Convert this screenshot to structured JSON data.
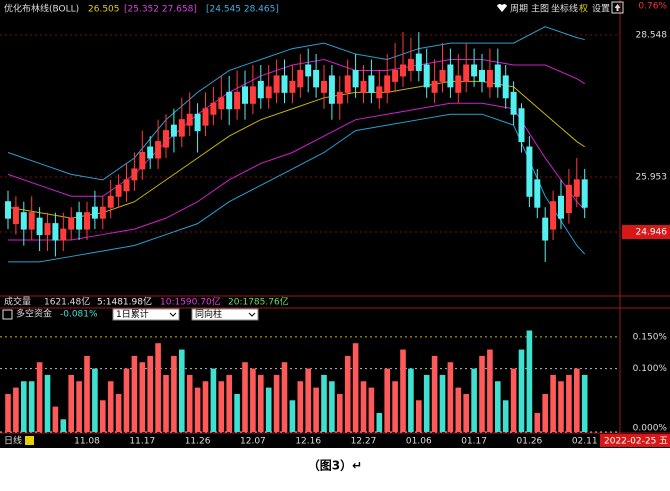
{
  "header": {
    "indicator": "优化布林线(BOLL)",
    "mid": "26.505",
    "inner": "[25.352  27.658]",
    "outer": "[24.545  28.465]",
    "buttons": [
      "周期",
      "主图",
      "坐标线",
      "权",
      "设置"
    ]
  },
  "volume_line": {
    "label": "成交量",
    "total": "1621.48亿",
    "ma5": "5:1481.98亿",
    "ma10": "10:1590.70亿",
    "ma20": "20:1785.76亿"
  },
  "indicator": {
    "name": "多空资金",
    "value": "-0.081%",
    "select1": "1日累计",
    "select2": "同向柱"
  },
  "footer": {
    "period": "日线",
    "date": "2022-02-25 五"
  },
  "caption": "（图3）↵",
  "chart_data": [
    {
      "type": "candlestick",
      "top_label": "0.76%",
      "up_color": "#ff3c3c",
      "down_color": "#54f0f0",
      "ylim": [
        23.795,
        29.188
      ],
      "yticks": [
        28.548,
        25.953,
        24.946
      ],
      "open": [
        25.5,
        25.1,
        25.3,
        25.0,
        25.2,
        24.9,
        25.1,
        24.8,
        25.0,
        25.3,
        25.0,
        25.4,
        25.2,
        25.4,
        25.6,
        25.7,
        25.9,
        26.1,
        26.5,
        26.3,
        26.5,
        26.9,
        26.7,
        26.9,
        27.1,
        26.9,
        27.1,
        27.2,
        27.5,
        27.2,
        27.6,
        27.3,
        27.7,
        27.4,
        27.5,
        27.8,
        27.5,
        27.6,
        28.0,
        27.9,
        27.5,
        27.8,
        27.3,
        27.5,
        27.9,
        27.5,
        27.8,
        27.4,
        27.5,
        27.7,
        27.8,
        27.9,
        28.2,
        28.0,
        27.5,
        27.7,
        28.0,
        27.5,
        27.7,
        28.0,
        27.9,
        27.6,
        28.0,
        27.8,
        27.5,
        27.2,
        26.5,
        25.9,
        25.2,
        25.0,
        25.6,
        25.3,
        25.6,
        25.9
      ],
      "high": [
        25.7,
        25.6,
        25.5,
        25.6,
        25.4,
        25.3,
        25.3,
        25.3,
        25.4,
        25.5,
        25.5,
        25.7,
        25.6,
        25.9,
        26.0,
        26.2,
        26.4,
        26.8,
        26.7,
        27.0,
        27.1,
        27.2,
        27.4,
        27.5,
        27.3,
        27.5,
        27.6,
        27.8,
        27.8,
        27.9,
        27.9,
        28.0,
        28.0,
        28.0,
        28.1,
        28.1,
        28.0,
        28.2,
        28.3,
        28.2,
        28.0,
        28.0,
        27.8,
        28.1,
        28.2,
        28.0,
        28.1,
        27.9,
        28.2,
        28.4,
        28.6,
        28.5,
        28.6,
        28.3,
        28.1,
        28.4,
        28.3,
        28.2,
        28.4,
        28.3,
        28.2,
        28.3,
        28.3,
        28.0,
        27.7,
        27.3,
        26.7,
        26.1,
        25.4,
        25.7,
        25.9,
        26.1,
        26.3,
        26.1
      ],
      "low": [
        25.0,
        24.9,
        24.7,
        24.8,
        24.6,
        24.6,
        24.5,
        24.6,
        24.8,
        24.8,
        24.8,
        25.0,
        25.0,
        25.2,
        25.4,
        25.5,
        25.7,
        25.9,
        26.1,
        26.1,
        26.3,
        26.4,
        26.5,
        26.7,
        26.4,
        26.7,
        26.9,
        27.0,
        26.9,
        27.0,
        27.0,
        27.1,
        27.2,
        27.2,
        27.3,
        27.3,
        27.3,
        27.4,
        27.5,
        27.4,
        27.2,
        27.0,
        27.0,
        27.3,
        27.4,
        27.3,
        27.3,
        27.2,
        27.3,
        27.5,
        27.6,
        27.7,
        27.7,
        27.4,
        27.3,
        27.5,
        27.4,
        27.3,
        27.5,
        27.6,
        27.5,
        27.4,
        27.4,
        27.2,
        26.9,
        26.4,
        25.4,
        25.2,
        24.4,
        24.8,
        25.0,
        25.1,
        25.4,
        25.2
      ],
      "close": [
        25.2,
        25.4,
        25.0,
        25.3,
        24.9,
        25.1,
        24.8,
        25.0,
        25.2,
        25.0,
        25.3,
        25.2,
        25.4,
        25.6,
        25.8,
        25.9,
        26.1,
        26.4,
        26.3,
        26.6,
        26.8,
        26.7,
        27.0,
        27.1,
        26.8,
        27.2,
        27.3,
        27.4,
        27.2,
        27.5,
        27.3,
        27.6,
        27.4,
        27.6,
        27.8,
        27.5,
        27.7,
        27.9,
        27.8,
        27.6,
        27.7,
        27.3,
        27.5,
        27.8,
        27.6,
        27.7,
        27.5,
        27.6,
        27.8,
        27.9,
        28.0,
        28.1,
        27.9,
        27.6,
        27.7,
        27.9,
        27.6,
        27.8,
        28.0,
        27.8,
        27.7,
        27.9,
        27.6,
        27.4,
        27.1,
        26.6,
        25.6,
        25.4,
        24.8,
        25.5,
        25.2,
        25.8,
        25.9,
        25.4
      ],
      "lines": [
        {
          "color": "#2a9fd0",
          "x": [
            0,
            4,
            8,
            12,
            16,
            20,
            24,
            28,
            32,
            36,
            40,
            44,
            48,
            52,
            56,
            60,
            64,
            68,
            72,
            73
          ],
          "values": [
            26.4,
            26.2,
            26.0,
            25.9,
            26.3,
            27.0,
            27.5,
            27.9,
            28.1,
            28.3,
            28.4,
            28.2,
            28.1,
            28.3,
            28.4,
            28.4,
            28.4,
            28.7,
            28.5,
            28.465
          ]
        },
        {
          "color": "#d020d0",
          "x": [
            0,
            4,
            8,
            12,
            16,
            20,
            24,
            28,
            32,
            36,
            40,
            44,
            48,
            52,
            56,
            60,
            64,
            68,
            72,
            73
          ],
          "values": [
            26.0,
            25.8,
            25.6,
            25.6,
            26.0,
            26.6,
            27.1,
            27.5,
            27.8,
            28.0,
            28.1,
            27.9,
            27.9,
            28.0,
            28.1,
            28.1,
            28.0,
            28.0,
            27.75,
            27.658
          ]
        },
        {
          "color": "#c8b400",
          "x": [
            0,
            4,
            8,
            12,
            16,
            20,
            24,
            28,
            32,
            36,
            40,
            44,
            48,
            52,
            56,
            60,
            64,
            68,
            72,
            73
          ],
          "values": [
            25.4,
            25.3,
            25.2,
            25.3,
            25.5,
            25.9,
            26.3,
            26.7,
            27.0,
            27.2,
            27.4,
            27.5,
            27.5,
            27.6,
            27.7,
            27.7,
            27.6,
            27.1,
            26.6,
            26.505
          ]
        },
        {
          "color": "#d020d0",
          "x": [
            0,
            4,
            8,
            12,
            16,
            20,
            24,
            28,
            32,
            36,
            40,
            44,
            48,
            52,
            56,
            60,
            64,
            68,
            72,
            73
          ],
          "values": [
            24.8,
            24.8,
            24.8,
            24.9,
            25.0,
            25.2,
            25.5,
            25.9,
            26.2,
            26.4,
            26.7,
            27.0,
            27.1,
            27.2,
            27.3,
            27.3,
            27.2,
            26.3,
            25.5,
            25.352
          ]
        },
        {
          "color": "#2a9fd0",
          "x": [
            0,
            4,
            8,
            12,
            16,
            20,
            24,
            28,
            32,
            36,
            40,
            44,
            48,
            52,
            56,
            60,
            64,
            68,
            72,
            73
          ],
          "values": [
            24.4,
            24.4,
            24.5,
            24.6,
            24.7,
            24.9,
            25.1,
            25.5,
            25.8,
            26.1,
            26.4,
            26.8,
            26.9,
            27.0,
            27.1,
            27.1,
            26.9,
            25.6,
            24.7,
            24.545
          ]
        }
      ]
    },
    {
      "type": "bar",
      "ylim": [
        0,
        0.175
      ],
      "yticks": [
        {
          "value": 0.15,
          "label": "0.150%"
        },
        {
          "value": 0.1,
          "label": "0.100%"
        },
        {
          "value": 0,
          "label": "0.000%"
        }
      ],
      "categories": [
        null,
        null,
        null,
        null,
        null,
        null,
        null,
        null,
        null,
        null,
        "11.08",
        null,
        null,
        null,
        null,
        null,
        null,
        "11.17",
        null,
        null,
        null,
        null,
        null,
        null,
        "11.26",
        null,
        null,
        null,
        null,
        null,
        null,
        "12.07",
        null,
        null,
        null,
        null,
        null,
        null,
        "12.16",
        null,
        null,
        null,
        null,
        null,
        null,
        "12.27",
        null,
        null,
        null,
        null,
        null,
        null,
        "01.06",
        null,
        null,
        null,
        null,
        null,
        null,
        "01.17",
        null,
        null,
        null,
        null,
        null,
        null,
        "01.26",
        null,
        null,
        null,
        null,
        null,
        null,
        "02.11"
      ],
      "values": [
        0.06,
        0.07,
        0.08,
        0.08,
        0.11,
        0.09,
        0.04,
        0.02,
        0.09,
        0.08,
        0.12,
        0.1,
        0.05,
        0.08,
        0.06,
        0.1,
        0.12,
        0.11,
        0.12,
        0.14,
        0.09,
        0.12,
        0.13,
        0.09,
        0.07,
        0.08,
        0.1,
        0.08,
        0.09,
        0.06,
        0.11,
        0.1,
        0.09,
        0.07,
        0.09,
        0.11,
        0.05,
        0.08,
        0.1,
        0.07,
        0.09,
        0.08,
        0.06,
        0.12,
        0.14,
        0.08,
        0.07,
        0.03,
        0.1,
        0.08,
        0.13,
        0.1,
        0.05,
        0.09,
        0.12,
        0.09,
        0.11,
        0.07,
        0.06,
        0.1,
        0.12,
        0.13,
        0.08,
        0.05,
        0.1,
        0.13,
        0.16,
        0.03,
        0.06,
        0.09,
        0.08,
        0.09,
        0.1,
        0.09
      ],
      "colors": [
        "#ff5a5a",
        "#ff5a5a",
        "#40e0d0",
        "#40e0d0",
        "#ff5a5a",
        "#40e0d0",
        "#ff5a5a",
        "#40e0d0",
        "#ff5a5a",
        "#ff5a5a",
        "#ff5a5a",
        "#40e0d0",
        "#ff5a5a",
        "#ff5a5a",
        "#ff5a5a",
        "#ff5a5a",
        "#ff5a5a",
        "#ff5a5a",
        "#ff5a5a",
        "#ff5a5a",
        "#ff5a5a",
        "#ff5a5a",
        "#40e0d0",
        "#ff5a5a",
        "#ff5a5a",
        "#ff5a5a",
        "#40e0d0",
        "#ff5a5a",
        "#ff5a5a",
        "#40e0d0",
        "#ff5a5a",
        "#ff5a5a",
        "#ff5a5a",
        "#40e0d0",
        "#ff5a5a",
        "#ff5a5a",
        "#40e0d0",
        "#ff5a5a",
        "#ff5a5a",
        "#ff5a5a",
        "#40e0d0",
        "#40e0d0",
        "#ff5a5a",
        "#ff5a5a",
        "#ff5a5a",
        "#ff5a5a",
        "#ff5a5a",
        "#40e0d0",
        "#ff5a5a",
        "#ff5a5a",
        "#ff5a5a",
        "#40e0d0",
        "#ff5a5a",
        "#40e0d0",
        "#ff5a5a",
        "#40e0d0",
        "#ff5a5a",
        "#ff5a5a",
        "#ff5a5a",
        "#40e0d0",
        "#ff5a5a",
        "#ff5a5a",
        "#40e0d0",
        "#40e0d0",
        "#ff5a5a",
        "#40e0d0",
        "#40e0d0",
        "#ff5a5a",
        "#ff5a5a",
        "#ff5a5a",
        "#ff5a5a",
        "#ff5a5a",
        "#ff5a5a",
        "#40e0d0"
      ]
    }
  ]
}
